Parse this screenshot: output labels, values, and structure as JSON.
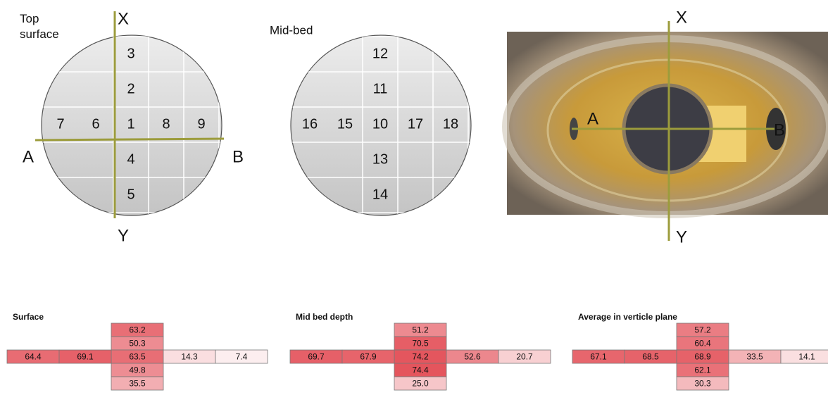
{
  "top_surface": {
    "title": "Top surface",
    "column": [
      "3",
      "2",
      "1",
      "4",
      "5"
    ],
    "row_left": [
      "7",
      "6"
    ],
    "row_right": [
      "8",
      "9"
    ],
    "axis_labels": {
      "x": "X",
      "y": "Y",
      "a": "A",
      "b": "B"
    }
  },
  "mid_bed": {
    "title": "Mid-bed",
    "column": [
      "12",
      "11",
      "10",
      "13",
      "14"
    ],
    "row_left": [
      "16",
      "15"
    ],
    "row_right": [
      "17",
      "18"
    ]
  },
  "photo": {
    "axis_labels": {
      "x": "X",
      "y": "Y",
      "a": "A",
      "b": "B"
    }
  },
  "tables": [
    {
      "title": "Surface",
      "column": [
        "63.2",
        "50.3",
        "63.5",
        "49.8",
        "35.5"
      ],
      "row_left": [
        "64.4",
        "69.1"
      ],
      "row_right": [
        "14.3",
        "7.4"
      ]
    },
    {
      "title": "Mid bed depth",
      "column": [
        "51.2",
        "70.5",
        "74.2",
        "74.4",
        "25.0"
      ],
      "row_left": [
        "69.7",
        "67.9"
      ],
      "row_right": [
        "52.6",
        "20.7"
      ]
    },
    {
      "title": "Average in verticle plane",
      "column": [
        "57.2",
        "60.4",
        "68.9",
        "62.1",
        "30.3"
      ],
      "row_left": [
        "67.1",
        "68.5"
      ],
      "row_right": [
        "33.5",
        "14.1"
      ]
    }
  ]
}
